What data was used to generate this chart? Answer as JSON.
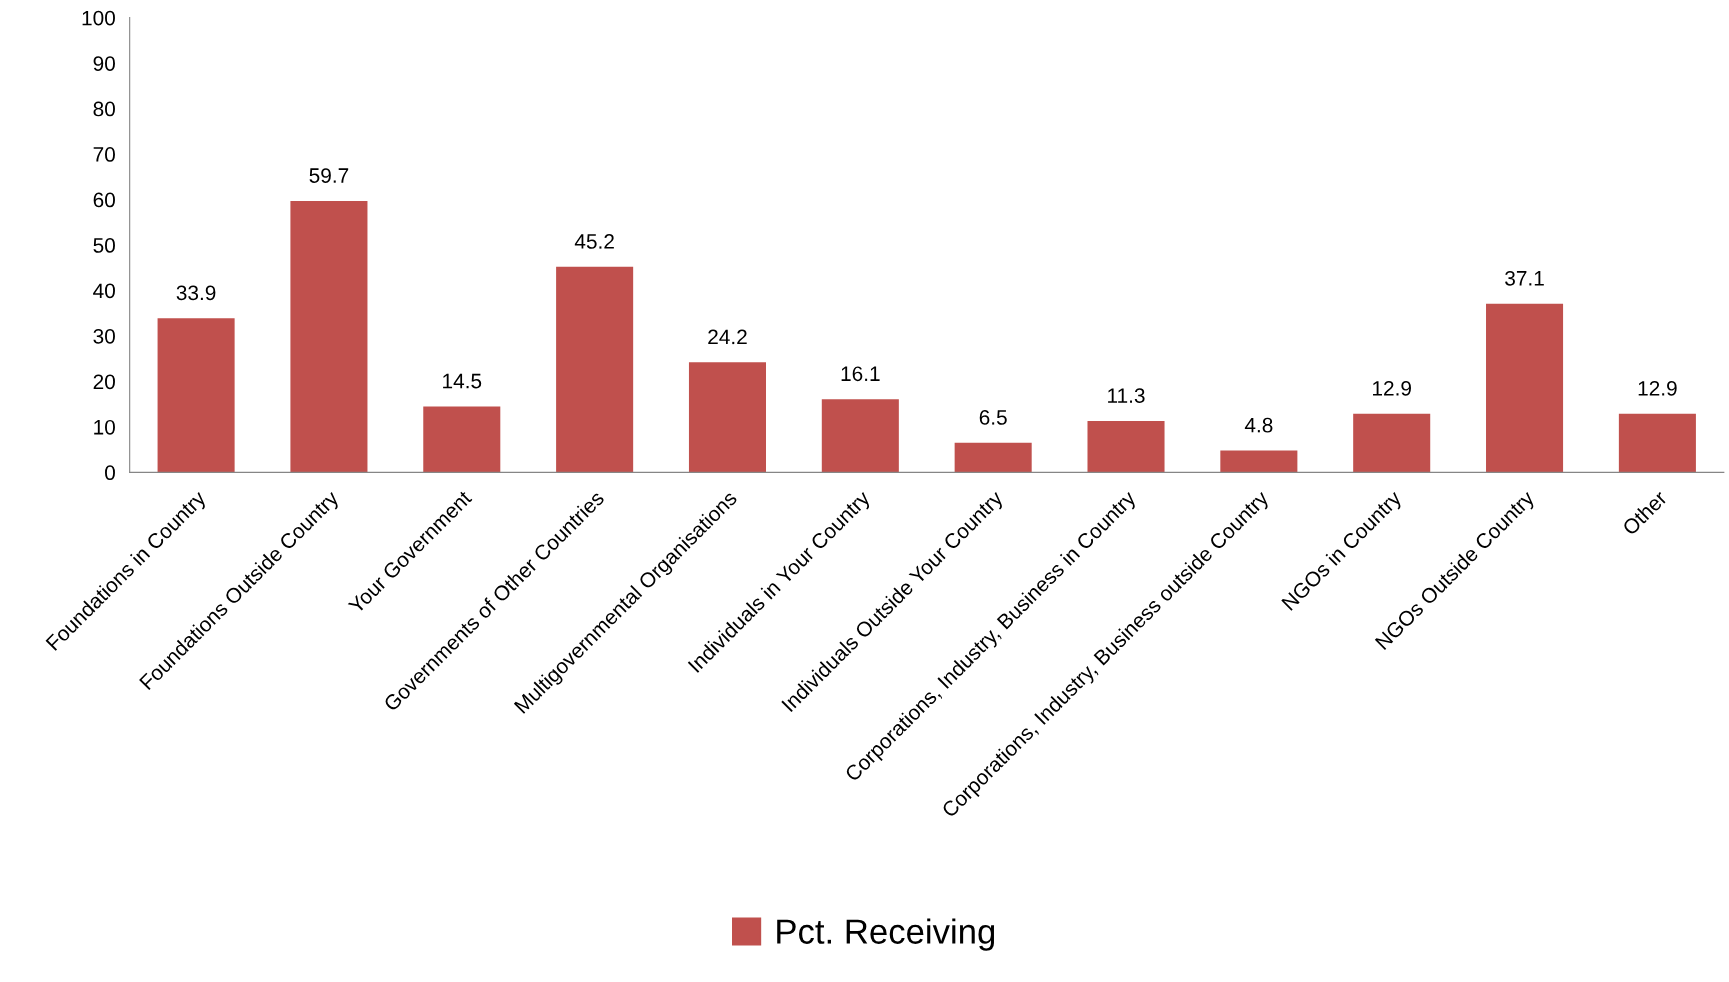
{
  "chart_data": {
    "type": "bar",
    "categories": [
      "Foundations in Country",
      "Foundations Outside Country",
      "Your Government",
      "Governments of Other Countries",
      "Multigovernmental Organisations",
      "Individuals in Your Country",
      "Individuals Outside Your Country",
      "Corporations, Industry, Business in Country",
      "Corporations, Industry, Business outside Country",
      "NGOs in Country",
      "NGOs Outside Country",
      "Other"
    ],
    "series": [
      {
        "name": "Pct. Receiving",
        "color": "#c0504d",
        "values": [
          33.9,
          59.7,
          14.5,
          45.2,
          24.2,
          16.1,
          6.5,
          11.3,
          4.8,
          12.9,
          37.1,
          12.9
        ]
      }
    ],
    "ylim": [
      0,
      100
    ],
    "yticks": [
      0,
      10,
      20,
      30,
      40,
      50,
      60,
      70,
      80,
      90,
      100
    ],
    "data_labels": true,
    "grid": false,
    "legend": "bottom"
  }
}
